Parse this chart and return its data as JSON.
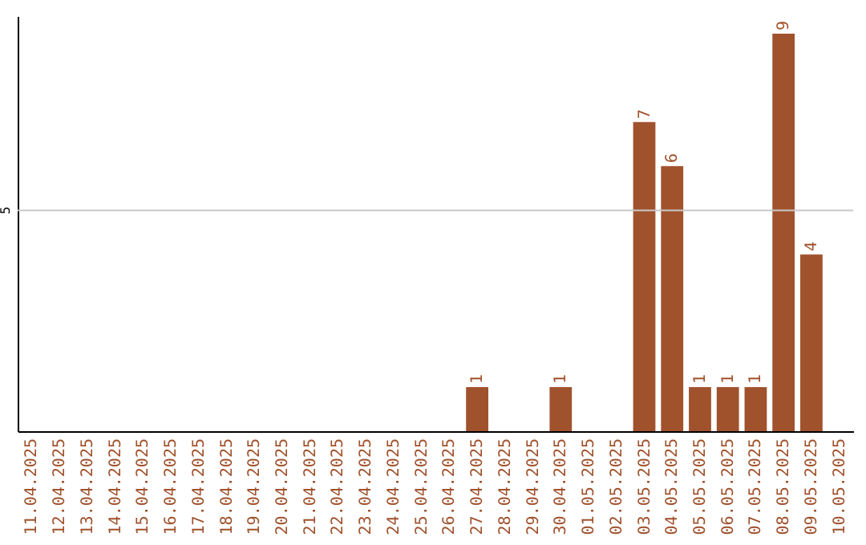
{
  "chart_data": {
    "type": "bar",
    "categories": [
      "11.04.2025",
      "12.04.2025",
      "13.04.2025",
      "14.04.2025",
      "15.04.2025",
      "16.04.2025",
      "17.04.2025",
      "18.04.2025",
      "19.04.2025",
      "20.04.2025",
      "21.04.2025",
      "22.04.2025",
      "23.04.2025",
      "24.04.2025",
      "25.04.2025",
      "26.04.2025",
      "27.04.2025",
      "28.04.2025",
      "29.04.2025",
      "30.04.2025",
      "01.05.2025",
      "02.05.2025",
      "03.05.2025",
      "04.05.2025",
      "05.05.2025",
      "06.05.2025",
      "07.05.2025",
      "08.05.2025",
      "09.05.2025",
      "10.05.2025"
    ],
    "values": [
      null,
      null,
      null,
      null,
      null,
      null,
      null,
      null,
      null,
      null,
      null,
      null,
      null,
      null,
      null,
      null,
      1,
      null,
      null,
      1,
      null,
      null,
      7,
      6,
      1,
      1,
      1,
      9,
      4,
      null
    ],
    "data_labels": true,
    "color": "#a0522d",
    "ylim": [
      0,
      9.4
    ],
    "ref_lines": [
      {
        "axis": "y",
        "value": 5,
        "label": "5",
        "color": "#c8c8c8"
      }
    ]
  }
}
